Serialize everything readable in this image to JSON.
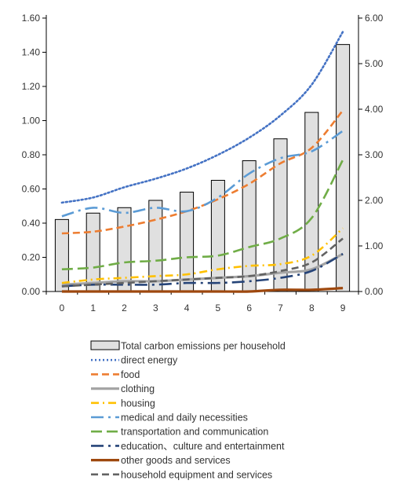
{
  "chart_data": {
    "type": "bar",
    "categories": [
      "0",
      "1",
      "2",
      "3",
      "4",
      "5",
      "6",
      "7",
      "8",
      "9"
    ],
    "bar_series": {
      "name": "Total carbon emissions per household",
      "axis": "right",
      "values": [
        1.58,
        1.72,
        1.84,
        2.0,
        2.18,
        2.44,
        2.87,
        3.35,
        3.93,
        5.42
      ],
      "fill": "#e0e0e0",
      "stroke": "#000000"
    },
    "left_axis": {
      "ylim": [
        0,
        1.6
      ],
      "ticks": [
        "0.00",
        "0.20",
        "0.40",
        "0.60",
        "0.80",
        "1.00",
        "1.20",
        "1.40",
        "1.60"
      ]
    },
    "right_axis": {
      "ylim": [
        0,
        6
      ],
      "ticks": [
        "0.00",
        "1.00",
        "2.00",
        "3.00",
        "4.00",
        "5.00",
        "6.00"
      ]
    },
    "line_series": [
      {
        "name": "direct energy",
        "color": "#4472c4",
        "dash": "dot",
        "values": [
          0.52,
          0.55,
          0.61,
          0.66,
          0.72,
          0.8,
          0.9,
          1.03,
          1.21,
          1.52
        ]
      },
      {
        "name": "food",
        "color": "#ed7d31",
        "dash": "dash",
        "values": [
          0.34,
          0.35,
          0.38,
          0.42,
          0.47,
          0.54,
          0.63,
          0.75,
          0.84,
          1.06
        ]
      },
      {
        "name": "clothing",
        "color": "#a5a5a5",
        "dash": "solid",
        "values": [
          0.04,
          0.05,
          0.06,
          0.06,
          0.07,
          0.08,
          0.09,
          0.11,
          0.13,
          0.22
        ]
      },
      {
        "name": "housing",
        "color": "#ffc000",
        "dash": "dashdot",
        "values": [
          0.05,
          0.07,
          0.08,
          0.09,
          0.1,
          0.13,
          0.15,
          0.16,
          0.21,
          0.37
        ]
      },
      {
        "name": "medical and daily necessities",
        "color": "#5b9bd5",
        "dash": "longdashdot",
        "values": [
          0.44,
          0.49,
          0.46,
          0.49,
          0.47,
          0.55,
          0.69,
          0.78,
          0.82,
          0.94
        ]
      },
      {
        "name": "transportation and communication",
        "color": "#70ad47",
        "dash": "longdash",
        "values": [
          0.13,
          0.14,
          0.17,
          0.18,
          0.2,
          0.21,
          0.26,
          0.31,
          0.43,
          0.77
        ]
      },
      {
        "name": "education、culture and entertainment",
        "color": "#264478",
        "dash": "longdashdot",
        "values": [
          0.03,
          0.04,
          0.04,
          0.04,
          0.05,
          0.05,
          0.06,
          0.08,
          0.12,
          0.22
        ]
      },
      {
        "name": "other goods and services",
        "color": "#9e480e",
        "dash": "solid",
        "values": [
          0.0,
          0.0,
          0.0,
          0.0,
          0.0,
          0.0,
          0.0,
          0.01,
          0.01,
          0.02
        ]
      },
      {
        "name": "household equipment and services",
        "color": "#636363",
        "dash": "dash",
        "values": [
          0.03,
          0.04,
          0.05,
          0.06,
          0.07,
          0.08,
          0.09,
          0.12,
          0.17,
          0.31
        ]
      }
    ],
    "legend": [
      {
        "label": "Total carbon emissions per household",
        "kind": "bar"
      },
      {
        "label": "direct energy",
        "kind": "line",
        "series": 0
      },
      {
        "label": "food",
        "kind": "line",
        "series": 1
      },
      {
        "label": "clothing",
        "kind": "line",
        "series": 2
      },
      {
        "label": "housing",
        "kind": "line",
        "series": 3
      },
      {
        "label": "medical and daily necessities",
        "kind": "line",
        "series": 4
      },
      {
        "label": "transportation and communication",
        "kind": "line",
        "series": 5
      },
      {
        "label": "education、culture and entertainment",
        "kind": "line",
        "series": 6
      },
      {
        "label": "other goods and services",
        "kind": "line",
        "series": 7
      },
      {
        "label": "household equipment and services",
        "kind": "line",
        "series": 8
      }
    ],
    "legend_placement": "bottom",
    "grid": false
  }
}
